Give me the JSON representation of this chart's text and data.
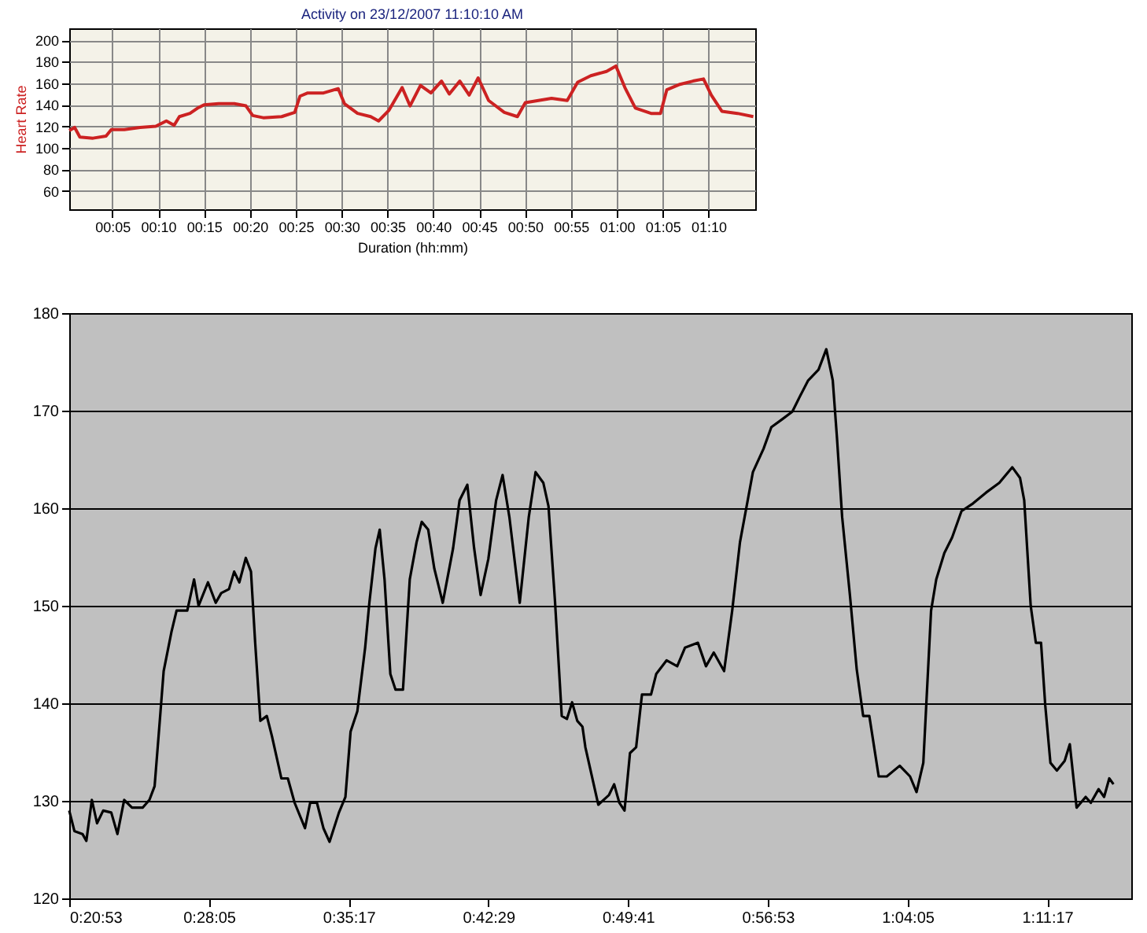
{
  "chart_data": [
    {
      "type": "line",
      "title": "Activity on 23/12/2007 11:10:10 AM",
      "xlabel": "Duration (hh:mm)",
      "ylabel": "Heart Rate",
      "grid": true,
      "x": [
        0.31,
        0.89,
        1.46,
        2.89,
        4.31,
        4.89,
        6.31,
        8.03,
        9.74,
        10.89,
        11.74,
        12.31,
        13.46,
        14.31,
        15.0,
        16.6,
        18.31,
        19.57,
        20.31,
        21.46,
        23.46,
        24.89,
        25.46,
        26.31,
        28.03,
        29.63,
        30.31,
        31.74,
        33.17,
        34.03,
        35.17,
        36.6,
        37.46,
        38.6,
        39.74,
        40.89,
        41.74,
        42.89,
        43.91,
        44.89,
        46.03,
        47.74,
        49.17,
        50.03,
        51.46,
        52.89,
        54.6,
        55.74,
        57.17,
        58.89,
        59.91,
        60.89,
        62.03,
        63.74,
        64.77,
        65.46,
        66.89,
        68.31,
        69.46,
        70.31,
        71.46,
        73.17,
        74.89
      ],
      "series": [
        {
          "color": "#cc2222",
          "values": [
            116,
            119,
            110,
            109,
            111,
            117,
            117,
            119,
            120,
            125,
            121,
            129,
            132,
            137,
            140,
            141,
            141,
            139,
            130,
            128,
            129,
            133,
            148,
            151,
            151,
            155,
            141,
            132,
            129,
            125,
            135,
            156,
            139,
            158,
            151,
            162,
            150,
            162,
            149,
            165,
            144,
            133,
            129,
            142,
            144,
            146,
            144,
            161,
            167,
            171,
            176,
            156,
            137,
            132,
            132,
            154,
            159,
            162,
            164,
            149,
            134,
            132,
            129
          ]
        }
      ],
      "xlim": [
        0.3,
        75.1
      ],
      "ylim": [
        43,
        211
      ],
      "xticks": [
        {
          "value": 5,
          "label": "00:05"
        },
        {
          "value": 10,
          "label": "00:10"
        },
        {
          "value": 15,
          "label": "00:15"
        },
        {
          "value": 20,
          "label": "00:20"
        },
        {
          "value": 25,
          "label": "00:25"
        },
        {
          "value": 30,
          "label": "00:30"
        },
        {
          "value": 35,
          "label": "00:35"
        },
        {
          "value": 40,
          "label": "00:40"
        },
        {
          "value": 45,
          "label": "00:45"
        },
        {
          "value": 50,
          "label": "00:50"
        },
        {
          "value": 55,
          "label": "00:55"
        },
        {
          "value": 60,
          "label": "01:00"
        },
        {
          "value": 65,
          "label": "01:05"
        },
        {
          "value": 70,
          "label": "01:10"
        }
      ],
      "yticks": [
        60,
        80,
        100,
        120,
        140,
        160,
        180,
        200
      ]
    },
    {
      "type": "line",
      "grid": "y",
      "x": [
        1253,
        1269,
        1294,
        1306,
        1323,
        1339,
        1358,
        1383,
        1402,
        1423,
        1447,
        1480,
        1501,
        1517,
        1533,
        1545,
        1569,
        1585,
        1618,
        1639,
        1653,
        1682,
        1706,
        1723,
        1747,
        1763,
        1779,
        1799,
        1815,
        1828,
        1844,
        1864,
        1880,
        1909,
        1929,
        1950,
        1982,
        1998,
        2019,
        2039,
        2058,
        2087,
        2107,
        2123,
        2144,
        2168,
        2181,
        2200,
        2213,
        2228,
        2246,
        2262,
        2285,
        2306,
        2327,
        2343,
        2363,
        2382,
        2408,
        2440,
        2460,
        2484,
        2505,
        2525,
        2549,
        2573,
        2593,
        2614,
        2646,
        2674,
        2695,
        2719,
        2735,
        2755,
        2776,
        2792,
        2808,
        2824,
        2840,
        2849,
        2889,
        2922,
        2938,
        2954,
        2970,
        2987,
        3006,
        3024,
        3052,
        3068,
        3100,
        3133,
        3157,
        3197,
        3222,
        3246,
        3278,
        3303,
        3327,
        3351,
        3367,
        3400,
        3424,
        3457,
        3489,
        3513,
        3538,
        3570,
        3594,
        3614,
        3627,
        3643,
        3667,
        3688,
        3708,
        3727,
        3756,
        3781,
        3821,
        3853,
        3873,
        3894,
        3918,
        3934,
        3959,
        3983,
        4012,
        4048,
        4088,
        4129,
        4169,
        4193,
        4206,
        4226,
        4242,
        4258,
        4271,
        4287,
        4307,
        4331,
        4347,
        4368,
        4396,
        4412,
        4436,
        4453,
        4469,
        4482
      ],
      "series": [
        {
          "color": "#000000",
          "values": [
            129.0,
            126.9,
            126.6,
            125.9,
            130.1,
            127.7,
            129.0,
            128.8,
            126.6,
            130.1,
            129.3,
            129.3,
            130.1,
            131.5,
            138.2,
            143.3,
            147.3,
            149.5,
            149.5,
            152.7,
            150.0,
            152.4,
            150.3,
            151.3,
            151.7,
            153.5,
            152.4,
            154.9,
            153.5,
            146.2,
            138.2,
            138.7,
            136.6,
            132.3,
            132.3,
            129.8,
            127.2,
            129.8,
            129.8,
            127.2,
            125.8,
            128.8,
            130.4,
            137.1,
            139.2,
            145.7,
            150.3,
            155.9,
            157.8,
            152.7,
            143.0,
            141.4,
            141.4,
            152.7,
            156.5,
            158.6,
            157.8,
            153.8,
            150.3,
            155.9,
            160.8,
            162.4,
            155.9,
            151.1,
            154.8,
            160.8,
            163.4,
            159.1,
            150.3,
            159.1,
            163.7,
            162.6,
            160.2,
            150.5,
            138.7,
            138.4,
            140.1,
            138.2,
            137.6,
            135.5,
            129.6,
            130.6,
            131.7,
            129.8,
            129.0,
            134.9,
            135.5,
            140.9,
            140.9,
            143.0,
            144.4,
            143.8,
            145.7,
            146.2,
            143.8,
            145.2,
            143.3,
            149.5,
            156.5,
            160.8,
            163.7,
            166.1,
            168.3,
            169.1,
            169.9,
            171.5,
            173.1,
            174.2,
            176.3,
            173.1,
            167.2,
            159.1,
            151.1,
            143.5,
            138.7,
            138.7,
            132.5,
            132.5,
            133.6,
            132.5,
            130.9,
            133.9,
            149.5,
            152.7,
            155.4,
            157.0,
            159.7,
            160.5,
            161.6,
            162.6,
            164.2,
            163.1,
            160.8,
            150.0,
            146.2,
            146.2,
            139.8,
            133.9,
            133.1,
            134.1,
            135.8,
            129.3,
            130.4,
            129.8,
            131.2,
            130.4,
            132.3,
            131.7
          ]
        }
      ],
      "xlim": [
        1253,
        4537
      ],
      "ylim": [
        120,
        180
      ],
      "xticks": [
        {
          "value": 1253,
          "label": "0:20:53"
        },
        {
          "value": 1685,
          "label": "0:28:05"
        },
        {
          "value": 2117,
          "label": "0:35:17"
        },
        {
          "value": 2549,
          "label": "0:42:29"
        },
        {
          "value": 2981,
          "label": "0:49:41"
        },
        {
          "value": 3413,
          "label": "0:56:53"
        },
        {
          "value": 3845,
          "label": "1:04:05"
        },
        {
          "value": 4277,
          "label": "1:11:17"
        }
      ],
      "yticks": [
        120,
        130,
        140,
        150,
        160,
        170,
        180
      ]
    }
  ]
}
